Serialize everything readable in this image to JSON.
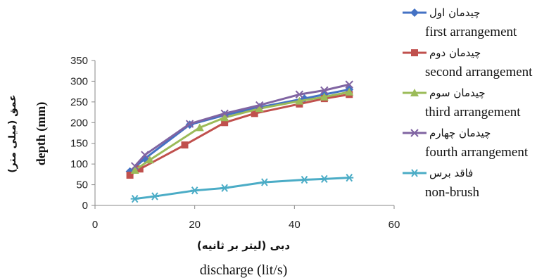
{
  "chart_data": {
    "type": "line",
    "xlabel_fa": "دبی (لیتر بر ثانیه)",
    "xlabel": "discharge (lit/s)",
    "ylabel_fa": "عمق (میلی متر)",
    "ylabel": "depth (mm)",
    "xlim": [
      0,
      60
    ],
    "ylim": [
      0,
      350
    ],
    "x_ticks": [
      "0",
      "20",
      "40",
      "60"
    ],
    "y_ticks": [
      "0",
      "50",
      "100",
      "150",
      "200",
      "250",
      "300",
      "350"
    ],
    "grid": false,
    "legend_position": "right",
    "series": [
      {
        "name_fa": "چیدمان اول",
        "name": "first arrangement",
        "color": "#4472C4",
        "marker": "diamond",
        "points": [
          [
            7,
            82
          ],
          [
            10,
            113
          ],
          [
            19,
            195
          ],
          [
            26,
            218
          ],
          [
            33,
            237
          ],
          [
            42,
            258
          ],
          [
            46,
            268
          ],
          [
            51,
            280
          ]
        ]
      },
      {
        "name_fa": "چیدمان دوم",
        "name": "second arrangement",
        "color": "#C0504D",
        "marker": "square",
        "points": [
          [
            7,
            73
          ],
          [
            9,
            88
          ],
          [
            18,
            146
          ],
          [
            26,
            200
          ],
          [
            32,
            222
          ],
          [
            41,
            245
          ],
          [
            46,
            258
          ],
          [
            51,
            268
          ]
        ]
      },
      {
        "name_fa": "چیدمان سوم",
        "name": "third arrangement",
        "color": "#9BBB59",
        "marker": "triangle",
        "points": [
          [
            8,
            85
          ],
          [
            11,
            110
          ],
          [
            21,
            188
          ],
          [
            26,
            212
          ],
          [
            33,
            234
          ],
          [
            41,
            252
          ],
          [
            46,
            262
          ],
          [
            51,
            274
          ]
        ]
      },
      {
        "name_fa": "چیدمان چهارم",
        "name": "fourth arrangement",
        "color": "#8064A2",
        "marker": "x",
        "points": [
          [
            8,
            95
          ],
          [
            10,
            122
          ],
          [
            19,
            197
          ],
          [
            26,
            222
          ],
          [
            33,
            242
          ],
          [
            41,
            268
          ],
          [
            46,
            278
          ],
          [
            51,
            292
          ]
        ]
      },
      {
        "name_fa": "فاقد برس",
        "name": "non-brush",
        "color": "#4BACC6",
        "marker": "asterisk",
        "points": [
          [
            8,
            16
          ],
          [
            12,
            22
          ],
          [
            20,
            36
          ],
          [
            26,
            42
          ],
          [
            34,
            56
          ],
          [
            42,
            62
          ],
          [
            46,
            64
          ],
          [
            51,
            67
          ]
        ]
      }
    ]
  }
}
